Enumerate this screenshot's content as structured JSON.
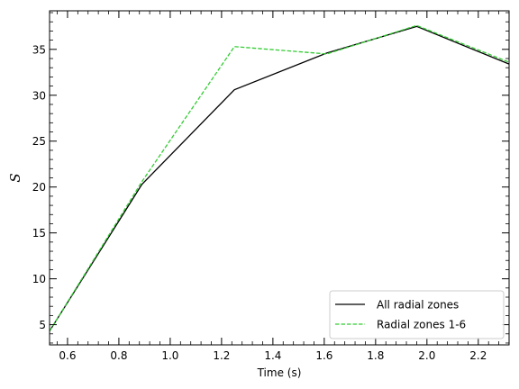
{
  "chart_data": {
    "type": "line",
    "title": "",
    "xlabel": "Time (s)",
    "ylabel": "S",
    "xlim": [
      0.53,
      2.32
    ],
    "ylim": [
      2.8,
      39.2
    ],
    "xticks": [
      0.6,
      0.8,
      1.0,
      1.2,
      1.4,
      1.6,
      1.8,
      2.0,
      2.2
    ],
    "xtick_labels": [
      "0.6",
      "0.8",
      "1.0",
      "1.2",
      "1.4",
      "1.6",
      "1.8",
      "2.0",
      "2.2"
    ],
    "yticks": [
      5,
      10,
      15,
      20,
      25,
      30,
      35
    ],
    "ytick_labels": [
      "5",
      "10",
      "15",
      "20",
      "25",
      "30",
      "35"
    ],
    "grid": false,
    "legend_position": "lower-right",
    "series": [
      {
        "name": "All radial zones",
        "color": "#000000",
        "style": "solid",
        "x": [
          0.53,
          0.89,
          1.25,
          1.61,
          1.96,
          2.32
        ],
        "y": [
          4.3,
          20.3,
          30.6,
          34.6,
          37.5,
          33.4
        ]
      },
      {
        "name": "Radial zones 1-6",
        "color": "#33cc33",
        "style": "dashed",
        "x": [
          0.53,
          0.89,
          1.25,
          1.61,
          1.96,
          2.32
        ],
        "y": [
          4.3,
          20.6,
          35.3,
          34.5,
          37.6,
          33.6
        ]
      }
    ]
  }
}
